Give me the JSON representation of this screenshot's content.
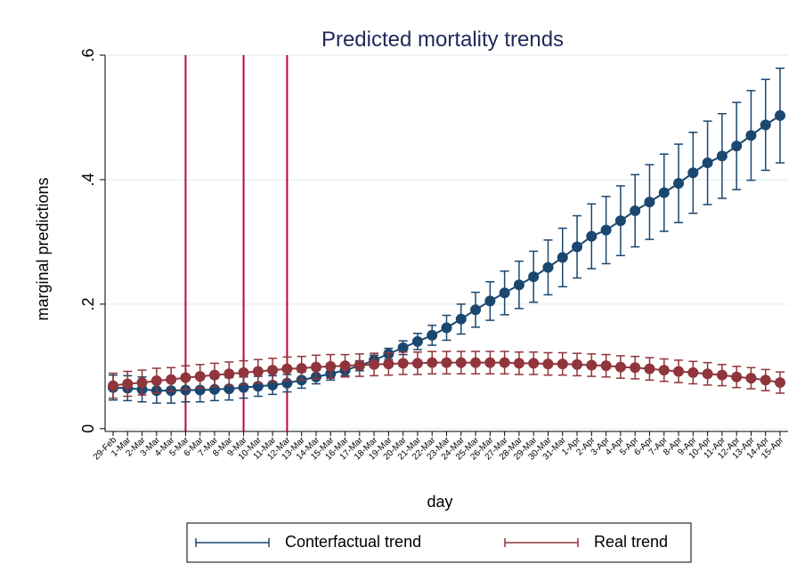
{
  "chart_data": {
    "type": "errorbar-line",
    "title": "Predicted mortality trends",
    "xlabel": "day",
    "ylabel": "marginal predictions",
    "categories": [
      "29-Feb",
      "1-Mar",
      "2-Mar",
      "3-Mar",
      "4-Mar",
      "5-Mar",
      "6-Mar",
      "7-Mar",
      "8-Mar",
      "9-Mar",
      "10-Mar",
      "11-Mar",
      "12-Mar",
      "13-Mar",
      "14-Mar",
      "15-Mar",
      "16-Mar",
      "17-Mar",
      "18-Mar",
      "19-Mar",
      "20-Mar",
      "21-Mar",
      "22-Mar",
      "23-Mar",
      "24-Mar",
      "25-Mar",
      "26-Mar",
      "27-Mar",
      "28-Mar",
      "29-Mar",
      "30-Mar",
      "31-Mar",
      "1-Apr",
      "2-Apr",
      "3-Apr",
      "4-Apr",
      "5-Apr",
      "6-Apr",
      "7-Apr",
      "8-Apr",
      "9-Apr",
      "10-Apr",
      "11-Apr",
      "12-Apr",
      "13-Apr",
      "14-Apr",
      "15-Apr"
    ],
    "series": [
      {
        "name": "Conterfactual trend",
        "color": "#1a476f",
        "values": [
          0.066,
          0.065,
          0.063,
          0.061,
          0.061,
          0.062,
          0.062,
          0.063,
          0.064,
          0.066,
          0.068,
          0.07,
          0.073,
          0.078,
          0.083,
          0.088,
          0.094,
          0.101,
          0.11,
          0.12,
          0.13,
          0.14,
          0.15,
          0.162,
          0.176,
          0.191,
          0.205,
          0.218,
          0.231,
          0.244,
          0.259,
          0.275,
          0.292,
          0.309,
          0.319,
          0.334,
          0.35,
          0.364,
          0.379,
          0.394,
          0.411,
          0.427,
          0.438,
          0.454,
          0.471,
          0.488,
          0.503
        ],
        "errors": [
          0.02,
          0.02,
          0.02,
          0.02,
          0.02,
          0.019,
          0.019,
          0.018,
          0.018,
          0.017,
          0.016,
          0.015,
          0.014,
          0.013,
          0.011,
          0.01,
          0.009,
          0.008,
          0.008,
          0.009,
          0.011,
          0.013,
          0.016,
          0.02,
          0.024,
          0.028,
          0.031,
          0.035,
          0.038,
          0.041,
          0.044,
          0.047,
          0.05,
          0.052,
          0.054,
          0.056,
          0.058,
          0.06,
          0.062,
          0.063,
          0.065,
          0.067,
          0.068,
          0.07,
          0.072,
          0.073,
          0.076
        ]
      },
      {
        "name": "Real trend",
        "color": "#90353b",
        "values": [
          0.069,
          0.072,
          0.074,
          0.077,
          0.079,
          0.082,
          0.084,
          0.086,
          0.088,
          0.09,
          0.092,
          0.094,
          0.096,
          0.097,
          0.099,
          0.1,
          0.101,
          0.102,
          0.103,
          0.104,
          0.105,
          0.105,
          0.106,
          0.106,
          0.106,
          0.106,
          0.106,
          0.106,
          0.105,
          0.105,
          0.104,
          0.104,
          0.103,
          0.102,
          0.101,
          0.099,
          0.098,
          0.096,
          0.094,
          0.092,
          0.09,
          0.088,
          0.086,
          0.083,
          0.081,
          0.078,
          0.074
        ],
        "errors": [
          0.02,
          0.02,
          0.02,
          0.02,
          0.019,
          0.019,
          0.019,
          0.019,
          0.019,
          0.019,
          0.019,
          0.019,
          0.019,
          0.019,
          0.019,
          0.019,
          0.018,
          0.018,
          0.018,
          0.018,
          0.018,
          0.018,
          0.018,
          0.018,
          0.018,
          0.018,
          0.018,
          0.018,
          0.018,
          0.018,
          0.018,
          0.018,
          0.018,
          0.018,
          0.018,
          0.018,
          0.018,
          0.018,
          0.018,
          0.018,
          0.018,
          0.018,
          0.017,
          0.017,
          0.017,
          0.017,
          0.017
        ]
      }
    ],
    "vlines": [
      "5-Mar",
      "9-Mar",
      "12-Mar"
    ],
    "vline_color": "#c10534",
    "ylim": [
      -0.0045,
      0.6
    ],
    "yticks": [
      0,
      {
        "value": 0.2,
        "label": ".2"
      },
      {
        "value": 0.4,
        "label": ".4"
      },
      {
        "value": 0.6,
        "label": ".6"
      }
    ],
    "grid": true
  }
}
